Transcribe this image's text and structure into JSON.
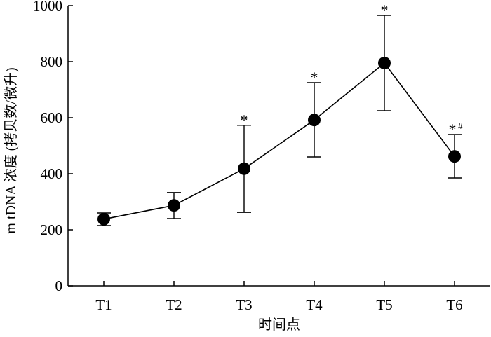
{
  "chart_data": {
    "type": "line",
    "categories": [
      "T1",
      "T2",
      "T3",
      "T4",
      "T5",
      "T6"
    ],
    "series": [
      {
        "values": [
          238,
          287,
          418,
          592,
          795,
          462
        ],
        "error_upper": [
          260,
          333,
          573,
          725,
          965,
          540
        ],
        "error_lower": [
          215,
          240,
          262,
          460,
          625,
          385
        ],
        "annotations": [
          "",
          "",
          "*",
          "*",
          "*",
          "*#"
        ]
      }
    ],
    "xlabel": "时间点",
    "ylabel": "m tDNA 浓度 (拷贝数/微升)",
    "ylim": [
      0,
      1000
    ],
    "yticks": [
      "0",
      "200",
      "400",
      "600",
      "800",
      "1000"
    ],
    "grid": false,
    "legend": "none",
    "colors": {
      "line": "#000000",
      "marker": "#000000"
    }
  }
}
